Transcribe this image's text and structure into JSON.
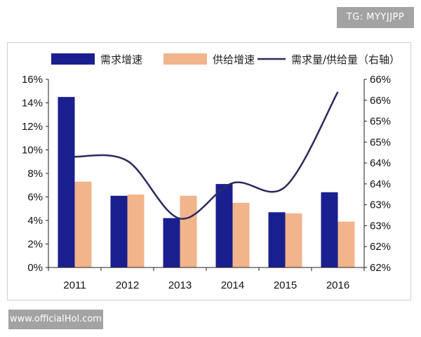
{
  "watermark": {
    "top": "TG: MYYJJPP",
    "bottom": "www.officialHol.com"
  },
  "colors": {
    "demand": "#1a1f8f",
    "supply": "#f2b48a",
    "ratio_line": "#2c2a5e",
    "axis": "#222222"
  },
  "chart_data": {
    "type": "bar",
    "categories": [
      "2011",
      "2012",
      "2013",
      "2014",
      "2015",
      "2016"
    ],
    "series": [
      {
        "name": "需求增速",
        "type": "bar",
        "axis": "left",
        "values": [
          0.145,
          0.061,
          0.042,
          0.071,
          0.047,
          0.064
        ]
      },
      {
        "name": "供给增速",
        "type": "bar",
        "axis": "left",
        "values": [
          0.073,
          0.062,
          0.061,
          0.055,
          0.046,
          0.039
        ]
      },
      {
        "name": "需求量/供给量（右轴）",
        "type": "line",
        "axis": "right",
        "values": [
          0.6465,
          0.6455,
          0.6317,
          0.6402,
          0.6393,
          0.662
        ]
      }
    ],
    "ylim_left": [
      0,
      0.16
    ],
    "ylim_right": [
      0.62,
      0.665
    ],
    "y_left_ticks": [
      "0%",
      "2%",
      "4%",
      "6%",
      "8%",
      "10%",
      "12%",
      "14%",
      "16%"
    ],
    "y_right_ticks": [
      "62%",
      "62%",
      "63%",
      "63%",
      "64%",
      "64%",
      "65%",
      "65%",
      "66%",
      "66%"
    ],
    "legend_position": "top",
    "grid": false
  }
}
